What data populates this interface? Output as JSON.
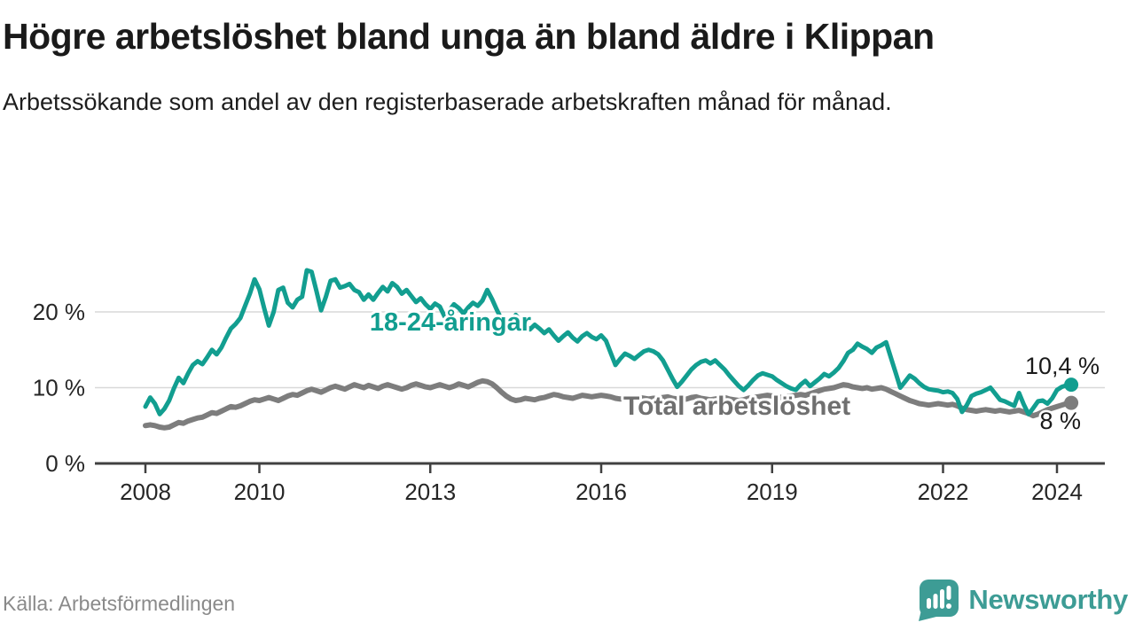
{
  "page": {
    "title": "Högre arbetslöshet bland unga än bland äldre i Klippan",
    "subtitle": "Arbetssökande som andel av den registerbaserade arbetskraften månad för månad.",
    "source": "Källa: Arbetsförmedlingen"
  },
  "branding": {
    "name": "Newsworthy",
    "logo_icon": "bar-chart-speech-bubble",
    "logo_color": "#3d9c95"
  },
  "chart_data": {
    "type": "line",
    "title": "Högre arbetslöshet bland unga än bland äldre i Klippan",
    "subtitle": "Arbetssökande som andel av den registerbaserade arbetskraften månad för månad.",
    "source": "Källa: Arbetsförmedlingen",
    "x_unit": "month",
    "start_month": "2008-01",
    "end_month": "2024-04",
    "grid": true,
    "legend_position": "inline-labels",
    "ylim": [
      0,
      27
    ],
    "y_ticks": [
      {
        "value": 0,
        "label": "0 %"
      },
      {
        "value": 10,
        "label": "10 %"
      },
      {
        "value": 20,
        "label": "20 %"
      }
    ],
    "x_ticks": [
      {
        "year": 2008,
        "label": "2008"
      },
      {
        "year": 2010,
        "label": "2010"
      },
      {
        "year": 2013,
        "label": "2013"
      },
      {
        "year": 2016,
        "label": "2016"
      },
      {
        "year": 2019,
        "label": "2019"
      },
      {
        "year": 2022,
        "label": "2022"
      },
      {
        "year": 2024,
        "label": "2024"
      }
    ],
    "series": [
      {
        "name": "18-24-åringar",
        "color": "#129e90",
        "line_width": 5,
        "end_value": 10.4,
        "end_label": "10,4 %",
        "values": [
          7.5,
          8.7,
          7.9,
          6.5,
          7.2,
          8.3,
          9.9,
          11.3,
          10.6,
          11.9,
          13.0,
          13.5,
          13.1,
          14.0,
          15.0,
          14.4,
          15.3,
          16.6,
          17.8,
          18.4,
          19.2,
          20.8,
          22.4,
          24.3,
          23.0,
          20.5,
          18.2,
          20.0,
          22.9,
          23.2,
          21.2,
          20.6,
          21.6,
          22.0,
          25.5,
          25.3,
          22.8,
          20.2,
          22.0,
          24.1,
          24.3,
          23.2,
          23.4,
          23.7,
          22.9,
          22.6,
          21.6,
          22.3,
          21.6,
          22.5,
          23.3,
          22.7,
          23.8,
          23.3,
          22.4,
          22.9,
          22.1,
          21.3,
          21.8,
          21.0,
          20.4,
          21.1,
          20.7,
          19.4,
          20.2,
          21.0,
          20.5,
          19.8,
          20.6,
          21.2,
          20.8,
          21.5,
          22.9,
          21.7,
          20.3,
          19.0,
          17.6,
          18.8,
          19.6,
          18.9,
          18.2,
          17.7,
          18.3,
          17.8,
          17.2,
          17.7,
          16.9,
          16.2,
          16.8,
          17.3,
          16.6,
          16.1,
          16.8,
          17.2,
          16.7,
          16.4,
          16.9,
          16.2,
          14.6,
          13.0,
          13.8,
          14.5,
          14.2,
          13.8,
          14.3,
          14.8,
          15.0,
          14.8,
          14.4,
          13.6,
          12.4,
          11.2,
          10.1,
          10.8,
          11.6,
          12.4,
          13.0,
          13.4,
          13.6,
          13.2,
          13.6,
          13.0,
          12.4,
          11.6,
          10.9,
          10.2,
          9.7,
          10.3,
          11.0,
          11.6,
          11.9,
          11.7,
          11.5,
          11.0,
          10.6,
          10.2,
          9.9,
          9.7,
          10.4,
          10.9,
          10.2,
          10.7,
          11.2,
          11.8,
          11.5,
          12.0,
          12.6,
          13.5,
          14.6,
          15.0,
          15.8,
          15.4,
          15.1,
          14.6,
          15.3,
          15.6,
          16.0,
          14.0,
          12.0,
          10.0,
          10.8,
          11.6,
          11.2,
          10.6,
          10.1,
          9.8,
          9.7,
          9.6,
          9.4,
          9.5,
          9.3,
          8.5,
          6.8,
          7.7,
          8.9,
          9.2,
          9.4,
          9.7,
          10.0,
          9.2,
          8.4,
          8.2,
          7.9,
          7.6,
          9.3,
          7.8,
          6.5,
          7.3,
          8.2,
          8.3,
          7.9,
          8.6,
          9.7,
          10.1,
          10.3,
          10.4
        ]
      },
      {
        "name": "Total arbetslöshet",
        "color": "#7d7d7d",
        "line_width": 6,
        "end_value": 8.0,
        "end_label": "8 %",
        "values": [
          5.0,
          5.1,
          5.0,
          4.8,
          4.7,
          4.8,
          5.1,
          5.4,
          5.3,
          5.6,
          5.8,
          6.0,
          6.1,
          6.4,
          6.7,
          6.6,
          6.9,
          7.2,
          7.5,
          7.4,
          7.6,
          7.9,
          8.2,
          8.4,
          8.3,
          8.5,
          8.7,
          8.5,
          8.3,
          8.6,
          8.9,
          9.1,
          9.0,
          9.3,
          9.6,
          9.8,
          9.6,
          9.4,
          9.7,
          10.0,
          10.2,
          10.0,
          9.8,
          10.1,
          10.4,
          10.2,
          10.0,
          10.3,
          10.1,
          9.9,
          10.2,
          10.4,
          10.2,
          10.0,
          9.8,
          10.0,
          10.3,
          10.5,
          10.3,
          10.1,
          10.0,
          10.2,
          10.4,
          10.2,
          10.0,
          10.2,
          10.5,
          10.3,
          10.1,
          10.4,
          10.7,
          10.9,
          10.8,
          10.5,
          10.0,
          9.4,
          8.9,
          8.5,
          8.3,
          8.4,
          8.6,
          8.5,
          8.4,
          8.6,
          8.7,
          8.9,
          9.1,
          9.0,
          8.8,
          8.7,
          8.6,
          8.8,
          9.0,
          8.9,
          8.8,
          8.9,
          9.0,
          8.9,
          8.8,
          8.6,
          8.5,
          8.6,
          8.7,
          8.8,
          8.7,
          8.6,
          8.5,
          8.6,
          8.6,
          8.7,
          8.8,
          8.6,
          8.5,
          8.4,
          8.5,
          8.7,
          8.8,
          8.6,
          8.5,
          8.4,
          8.5,
          8.6,
          8.7,
          8.5,
          8.4,
          8.3,
          8.4,
          8.6,
          8.7,
          8.8,
          8.9,
          9.0,
          8.9,
          8.8,
          8.7,
          8.8,
          8.9,
          9.0,
          9.1,
          9.0,
          9.2,
          9.4,
          9.6,
          9.8,
          9.9,
          10.0,
          10.2,
          10.4,
          10.3,
          10.1,
          10.0,
          9.9,
          10.0,
          9.8,
          9.9,
          10.0,
          9.8,
          9.5,
          9.2,
          8.9,
          8.6,
          8.3,
          8.1,
          7.9,
          7.8,
          7.7,
          7.8,
          7.9,
          7.8,
          7.7,
          7.8,
          7.6,
          7.3,
          7.1,
          7.0,
          6.9,
          7.0,
          7.1,
          7.0,
          6.9,
          7.0,
          6.9,
          6.8,
          6.9,
          7.0,
          6.8,
          6.6,
          6.3,
          6.5,
          6.8,
          7.1,
          7.3,
          7.5,
          7.7,
          7.9,
          8.0
        ]
      }
    ]
  }
}
